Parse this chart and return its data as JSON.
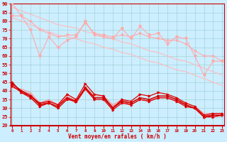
{
  "x": [
    0,
    1,
    2,
    3,
    4,
    5,
    6,
    7,
    8,
    9,
    10,
    11,
    12,
    13,
    14,
    15,
    16,
    17,
    18,
    19,
    20,
    21,
    22,
    23
  ],
  "line_jagged_high": [
    90,
    83,
    75,
    60,
    71,
    65,
    69,
    71,
    80,
    72,
    71,
    70,
    76,
    70,
    77,
    72,
    73,
    67,
    71,
    70,
    60,
    49,
    57,
    57
  ],
  "line_smooth_upper": [
    83,
    83,
    80,
    75,
    73,
    71,
    72,
    72,
    79,
    73,
    72,
    71,
    72,
    71,
    73,
    71,
    70,
    69,
    69,
    67,
    63,
    60,
    60,
    57
  ],
  "trend_upper": [
    88,
    86,
    84,
    82,
    80,
    78,
    77,
    76,
    74,
    73,
    71,
    70,
    68,
    67,
    65,
    63,
    62,
    60,
    58,
    57,
    55,
    53,
    51,
    49
  ],
  "trend_lower": [
    82,
    80,
    78,
    76,
    74,
    72,
    71,
    70,
    68,
    67,
    65,
    64,
    62,
    61,
    59,
    57,
    56,
    54,
    52,
    51,
    49,
    47,
    45,
    43
  ],
  "line_red1": [
    45,
    39,
    37,
    33,
    34,
    32,
    38,
    35,
    44,
    38,
    37,
    30,
    35,
    34,
    38,
    37,
    39,
    38,
    36,
    33,
    31,
    26,
    27,
    27
  ],
  "line_red2": [
    44,
    40,
    37,
    32,
    33,
    31,
    36,
    34,
    42,
    36,
    36,
    30,
    34,
    33,
    36,
    35,
    37,
    37,
    35,
    32,
    30,
    25,
    26,
    26
  ],
  "line_red3": [
    43,
    39,
    36,
    31,
    33,
    30,
    35,
    34,
    41,
    35,
    35,
    29,
    33,
    32,
    35,
    34,
    36,
    36,
    34,
    31,
    30,
    25,
    25,
    26
  ],
  "line_red4": [
    42,
    40,
    38,
    32,
    34,
    32,
    36,
    33,
    41,
    36,
    36,
    31,
    34,
    32,
    35,
    34,
    36,
    36,
    34,
    32,
    30,
    26,
    26,
    26
  ],
  "line_red5": [
    42,
    41,
    39,
    33,
    35,
    32,
    37,
    34,
    42,
    37,
    37,
    32,
    35,
    33,
    36,
    35,
    37,
    37,
    35,
    33,
    31,
    27,
    27,
    27
  ],
  "xlabel": "Vent moyen/en rafales ( km/h )",
  "ylim": [
    20,
    90
  ],
  "xlim": [
    0,
    23
  ],
  "background_color": "#cceeff",
  "grid_color": "#99cccc",
  "color_light": "#ffaaaa",
  "color_red": "#dd0000",
  "color_darkred": "#cc0000",
  "color_trend": "#ffbbbb",
  "tick_color": "#cc0000",
  "label_color": "#cc0000"
}
